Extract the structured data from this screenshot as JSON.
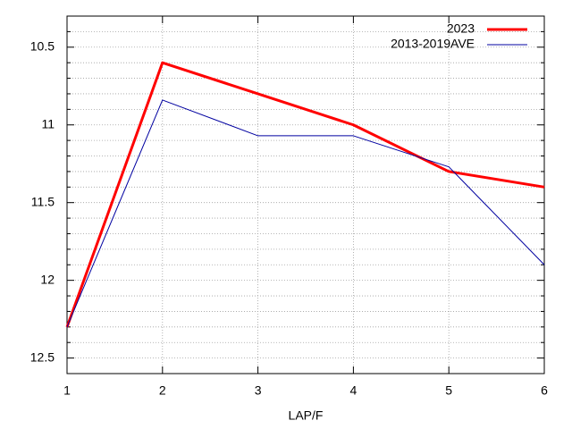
{
  "chart_data": {
    "type": "line",
    "x_label": "LAP/F",
    "x": [
      1,
      2,
      3,
      4,
      5,
      6
    ],
    "series": [
      {
        "name": "2023",
        "color": "#ff0000",
        "width": 3,
        "values": [
          12.3,
          10.6,
          10.8,
          11.0,
          11.3,
          11.4
        ]
      },
      {
        "name": "2013-2019AVE",
        "color": "#0000a0",
        "width": 1,
        "values": [
          12.3,
          10.84,
          11.07,
          11.07,
          11.27,
          11.9
        ]
      }
    ],
    "xlim": [
      1,
      6
    ],
    "xticks": [
      1,
      2,
      3,
      4,
      5,
      6
    ],
    "ylim": [
      10.3,
      12.6
    ],
    "y_reversed": true,
    "yticks": [
      10.5,
      11,
      11.5,
      12,
      12.5
    ],
    "y_minor_ticks": [
      10.4,
      10.6,
      10.7,
      10.8,
      10.9,
      11.1,
      11.2,
      11.3,
      11.4,
      11.6,
      11.7,
      11.8,
      11.9,
      12.1,
      12.2,
      12.3,
      12.4,
      12.6
    ],
    "grid": true,
    "legend": "top-right"
  }
}
